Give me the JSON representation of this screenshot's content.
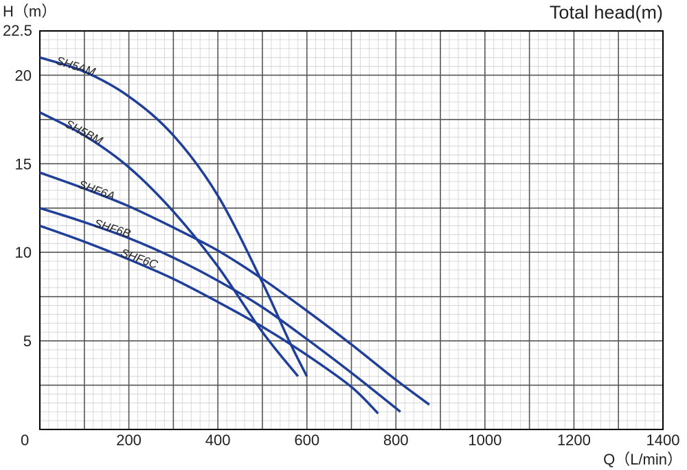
{
  "chart_data": {
    "type": "line",
    "title": "Total head(m)",
    "ylabel": "H（m）",
    "xlabel": "Q（L/min）",
    "xlim": [
      0,
      1400
    ],
    "ylim": [
      0,
      22.5
    ],
    "x_ticks": [
      0,
      200,
      400,
      600,
      800,
      1000,
      1200,
      1400
    ],
    "x_tick_labels": [
      "0",
      "200",
      "400",
      "600",
      "800",
      "1000",
      "1200",
      "1400"
    ],
    "y_ticks": [
      5,
      10,
      15,
      20,
      22.5
    ],
    "y_tick_labels": [
      "5",
      "10",
      "15",
      "20",
      "22.5"
    ],
    "grid": true,
    "line_color": "#1f3f99",
    "series": [
      {
        "name": "SH5AM",
        "x": [
          0,
          100,
          200,
          300,
          400,
          500,
          560,
          600
        ],
        "y": [
          21,
          20.2,
          18.8,
          16.6,
          13.2,
          8.3,
          5,
          3
        ]
      },
      {
        "name": "SH5BM",
        "x": [
          0,
          100,
          200,
          300,
          400,
          500,
          580
        ],
        "y": [
          17.9,
          16.6,
          14.8,
          12.3,
          9.2,
          5.5,
          3
        ]
      },
      {
        "name": "SHF6A",
        "x": [
          0,
          100,
          200,
          300,
          400,
          500,
          600,
          700,
          800,
          875
        ],
        "y": [
          14.5,
          13.6,
          12.6,
          11.4,
          10.1,
          8.5,
          6.7,
          4.8,
          2.8,
          1.4
        ]
      },
      {
        "name": "SHF6B",
        "x": [
          0,
          100,
          200,
          300,
          400,
          500,
          600,
          700,
          810
        ],
        "y": [
          12.5,
          11.7,
          10.8,
          9.7,
          8.4,
          6.9,
          5.1,
          3.2,
          1
        ]
      },
      {
        "name": "SHF6C",
        "x": [
          0,
          100,
          200,
          300,
          400,
          500,
          600,
          700,
          760
        ],
        "y": [
          11.5,
          10.6,
          9.6,
          8.5,
          7.2,
          5.8,
          4.2,
          2.4,
          0.9
        ]
      }
    ]
  }
}
